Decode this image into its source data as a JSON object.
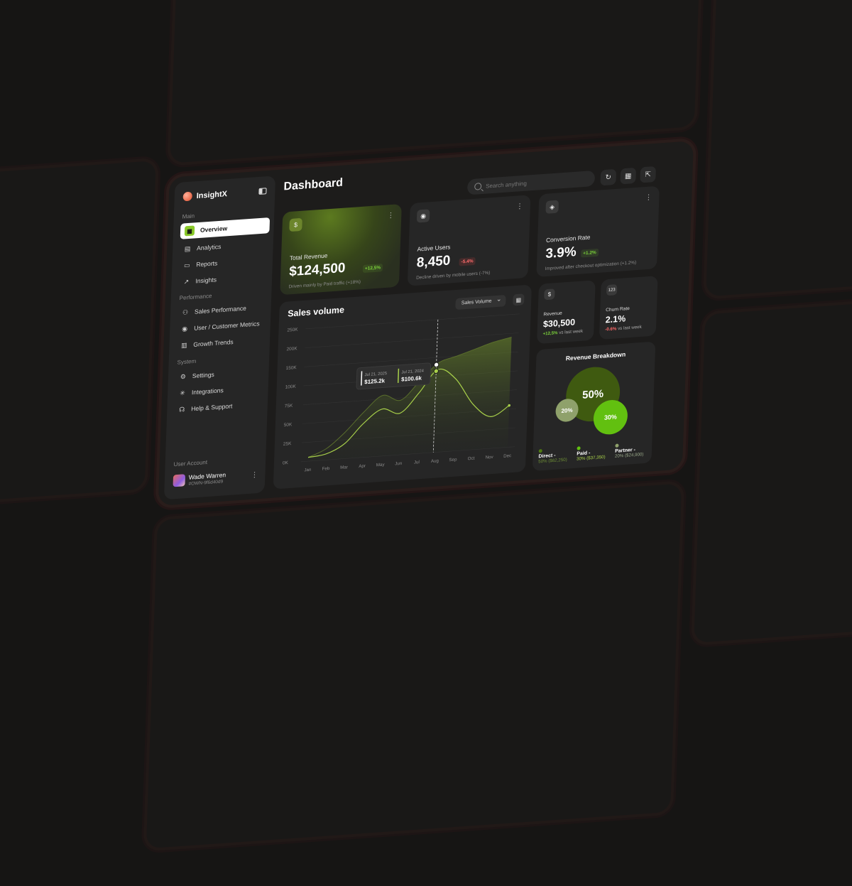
{
  "app": {
    "name": "InsightX",
    "page_title": "Dashboard"
  },
  "sidebar": {
    "sections": [
      {
        "label": "Main"
      },
      {
        "label": "Performance"
      },
      {
        "label": "System"
      }
    ],
    "items": [
      {
        "label": "Overview",
        "icon": "grid-icon",
        "active": true
      },
      {
        "label": "Analytics",
        "icon": "analytics-icon"
      },
      {
        "label": "Reports",
        "icon": "clipboard-icon"
      },
      {
        "label": "Insights",
        "icon": "trend-icon"
      },
      {
        "label": "Sales Performance",
        "icon": "people-icon"
      },
      {
        "label": "User / Customer Metrics",
        "icon": "user-icon"
      },
      {
        "label": "Growth Trends",
        "icon": "bars-icon"
      },
      {
        "label": "Settings",
        "icon": "gear-icon"
      },
      {
        "label": "Integrations",
        "icon": "integrations-icon"
      },
      {
        "label": "Help & Support",
        "icon": "support-icon"
      }
    ],
    "account_label": "User Account",
    "user": {
      "name": "Wade Warren",
      "id": "#OWN-9f6d40d9"
    }
  },
  "header": {
    "search_placeholder": "Search anything",
    "buttons": [
      "refresh-icon",
      "calendar-icon",
      "export-icon"
    ]
  },
  "kpis": {
    "revenue": {
      "label": "Total Revenue",
      "value": "$124,500",
      "change": "+12,5%",
      "note": "Driven mainly by Paid traffic (+18%)"
    },
    "users": {
      "label": "Active Users",
      "value": "8,450",
      "change": "-5.4%",
      "note": "Decline driven by mobile users (-7%)"
    },
    "conversion": {
      "label": "Conversion Rate",
      "value": "3.9%",
      "change": "+1.2%",
      "note": "Improved after checkout optimization (+1.2%)"
    }
  },
  "mini": {
    "revenue": {
      "label": "Revenue",
      "value": "$30,500",
      "change": "+12,5%",
      "suffix": "vs last week"
    },
    "churn": {
      "label": "Churn Rate",
      "value": "2.1%",
      "change": "-0.6%",
      "suffix": "vs last week"
    }
  },
  "breakdown": {
    "title": "Revenue Breakdown",
    "slices": [
      {
        "name": "Direct -",
        "value": "50% ($62,250)",
        "pct": 50,
        "pct_label": "50%",
        "color": "#3f5a10"
      },
      {
        "name": "Paid -",
        "value": "30% ($37,350)",
        "pct": 30,
        "pct_label": "30%",
        "color": "#62c010"
      },
      {
        "name": "Partner -",
        "value": "20% ($24,900)",
        "pct": 20,
        "pct_label": "20%",
        "color": "#8fa16b"
      }
    ]
  },
  "chart_data": {
    "type": "area",
    "title": "Sales volume",
    "selector": "Sales Volume",
    "categories": [
      "Jan",
      "Feb",
      "Mar",
      "Apr",
      "May",
      "Jun",
      "Jul",
      "Aug",
      "Sep",
      "Oct",
      "Nov",
      "Dec"
    ],
    "y_ticks": [
      "0K",
      "25K",
      "50K",
      "75K",
      "100K",
      "150K",
      "200K",
      "250K"
    ],
    "ylim": [
      0,
      250000
    ],
    "series": [
      {
        "values": [
          5000,
          15000,
          35000,
          60000,
          80000,
          72000,
          95000,
          135000,
          150000,
          165000,
          180000,
          190000
        ]
      },
      {
        "values": [
          5000,
          8000,
          20000,
          45000,
          62000,
          55000,
          80000,
          118000,
          95000,
          60000,
          42000,
          55000
        ]
      }
    ],
    "tooltip": {
      "items": [
        {
          "date": "Jul 21, 2025",
          "value": "$125.2k"
        },
        {
          "date": "Jul 21, 2024",
          "value": "$100.6k"
        }
      ],
      "index": 6.9
    },
    "grid": true,
    "accent": "#a8d04a"
  }
}
